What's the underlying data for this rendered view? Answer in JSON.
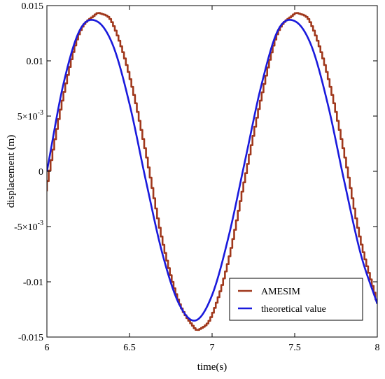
{
  "chart_data": {
    "type": "line",
    "xlabel": "time(s)",
    "ylabel": "displacement (m)",
    "xlim": [
      6,
      8
    ],
    "ylim": [
      -0.015,
      0.015
    ],
    "x_ticks": [
      {
        "value": 6,
        "label": "6"
      },
      {
        "value": 6.5,
        "label": "6.5"
      },
      {
        "value": 7,
        "label": "7"
      },
      {
        "value": 7.5,
        "label": "7.5"
      },
      {
        "value": 8,
        "label": "8"
      }
    ],
    "y_ticks": [
      {
        "value": 0.015,
        "label": "0.015"
      },
      {
        "value": 0.01,
        "label": "0.01"
      },
      {
        "value": 0.005,
        "label": "5×10",
        "exp": "-3"
      },
      {
        "value": 0,
        "label": "0"
      },
      {
        "value": -0.005,
        "label": "-5×10",
        "exp": "-3"
      },
      {
        "value": -0.01,
        "label": "-0.01"
      },
      {
        "value": -0.015,
        "label": "-0.015"
      }
    ],
    "legend_position": "bottom-right",
    "series": [
      {
        "name": "AMESIM",
        "color": "#a0381c",
        "style": "stepped",
        "x": [
          6.0,
          6.1,
          6.2,
          6.3,
          6.33,
          6.4,
          6.5,
          6.6,
          6.7,
          6.8,
          6.9,
          6.93,
          7.0,
          7.1,
          7.2,
          7.3,
          7.4,
          7.5,
          7.53,
          7.6,
          7.7,
          7.8,
          7.9,
          8.0
        ],
        "y": [
          -0.0018,
          0.0064,
          0.0124,
          0.0142,
          0.0143,
          0.0135,
          0.009,
          0.0021,
          -0.0059,
          -0.0116,
          -0.0142,
          -0.0143,
          -0.0132,
          -0.0084,
          -0.001,
          0.0064,
          0.0124,
          0.0142,
          0.0143,
          0.0135,
          0.009,
          0.0021,
          -0.0059,
          -0.0116
        ]
      },
      {
        "name": "theoretical value",
        "color": "#1a1adc",
        "style": "smooth",
        "x": [
          6.0,
          6.1,
          6.2,
          6.3,
          6.4,
          6.5,
          6.6,
          6.7,
          6.8,
          6.9,
          7.0,
          7.1,
          7.2,
          7.3,
          7.4,
          7.5,
          7.6,
          7.7,
          7.8,
          7.9,
          8.0
        ],
        "y": [
          0.0,
          0.0079,
          0.0128,
          0.0136,
          0.0114,
          0.0061,
          -0.0009,
          -0.0075,
          -0.012,
          -0.0135,
          -0.0112,
          -0.0059,
          0.001,
          0.0079,
          0.0128,
          0.0136,
          0.0114,
          0.0061,
          -0.0009,
          -0.0075,
          -0.012
        ]
      }
    ]
  }
}
